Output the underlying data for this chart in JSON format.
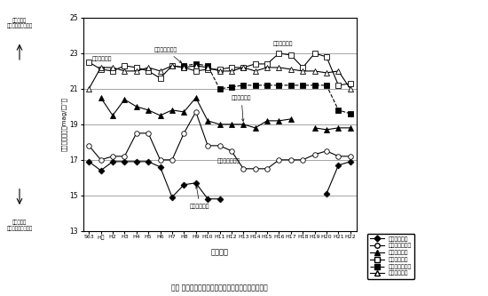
{
  "title": "図７ 同一観察地点での夜空の明るさの推移（冬期）",
  "xlabel": "実施年度",
  "ylabel": "夜空の明るさ（mag/□″）",
  "ylim": [
    13.0,
    25.0
  ],
  "yticks": [
    13.0,
    15.0,
    17.0,
    19.0,
    21.0,
    23.0,
    25.0
  ],
  "xtick_labels": [
    "S63",
    "H元",
    "H2",
    "H3",
    "H4",
    "H5",
    "H6",
    "H7",
    "H8",
    "H9",
    "H10",
    "H11",
    "H12",
    "H13",
    "H14",
    "H15",
    "H16",
    "H17",
    "H18",
    "H19",
    "H20",
    "H21",
    "H22"
  ],
  "series": [
    {
      "name": "東京都中野区",
      "marker": "D",
      "mfc": "black",
      "ls": "-",
      "lw": 0.8,
      "ms": 3.5,
      "values": [
        16.9,
        16.4,
        16.9,
        16.9,
        16.9,
        16.9,
        16.6,
        14.9,
        15.6,
        15.7,
        14.8,
        14.8,
        null,
        null,
        null,
        null,
        null,
        null,
        null,
        null,
        15.1,
        16.7,
        16.9
      ]
    },
    {
      "name": "神奈川県平塚市",
      "marker": "o",
      "mfc": "white",
      "ls": "-",
      "lw": 0.8,
      "ms": 4,
      "values": [
        17.8,
        17.0,
        17.2,
        17.2,
        18.5,
        18.5,
        17.0,
        17.0,
        18.5,
        19.7,
        17.8,
        17.8,
        17.5,
        16.5,
        16.5,
        16.5,
        17.0,
        17.0,
        17.0,
        17.3,
        17.5,
        17.2,
        17.2
      ]
    },
    {
      "name": "静岡県浜松市",
      "marker": "^",
      "mfc": "black",
      "ls": "-",
      "lw": 0.8,
      "ms": 4,
      "values": [
        null,
        20.5,
        19.5,
        20.4,
        20.0,
        19.8,
        19.5,
        19.8,
        19.7,
        20.5,
        19.2,
        19.0,
        19.0,
        19.0,
        18.8,
        19.2,
        19.2,
        19.3,
        null,
        18.8,
        18.7,
        18.8,
        18.8
      ]
    },
    {
      "name": "愛知県東栄町",
      "marker": "s",
      "mfc": "white",
      "ls": "-",
      "lw": 0.8,
      "ms": 4,
      "values": [
        22.5,
        22.1,
        22.0,
        22.3,
        22.2,
        22.0,
        21.6,
        22.3,
        22.2,
        22.0,
        22.1,
        22.1,
        22.2,
        22.2,
        22.4,
        22.4,
        23.0,
        22.9,
        22.2,
        23.0,
        22.8,
        21.2,
        21.3
      ]
    },
    {
      "name": "佐賀県伊万里市",
      "marker": "s",
      "mfc": "black",
      "ls": "--",
      "lw": 0.8,
      "ms": 4,
      "values": [
        null,
        null,
        null,
        null,
        null,
        null,
        null,
        null,
        22.3,
        22.4,
        22.3,
        21.0,
        21.1,
        21.2,
        21.2,
        21.2,
        21.2,
        21.2,
        21.2,
        21.2,
        21.2,
        19.8,
        19.6
      ]
    },
    {
      "name": "宮崎県都城市",
      "marker": "^",
      "mfc": "white",
      "ls": "-",
      "lw": 0.8,
      "ms": 4,
      "values": [
        21.0,
        22.2,
        22.2,
        22.0,
        22.0,
        22.2,
        22.0,
        22.3,
        22.2,
        22.3,
        22.2,
        22.0,
        22.0,
        22.2,
        22.0,
        22.2,
        22.2,
        22.1,
        22.0,
        22.0,
        21.9,
        22.0,
        21.0
      ]
    }
  ],
  "left_top": "夜空が明い\n（星が見えやすい）",
  "left_bottom": "夜空が暗い\n（星が見えにくい）"
}
